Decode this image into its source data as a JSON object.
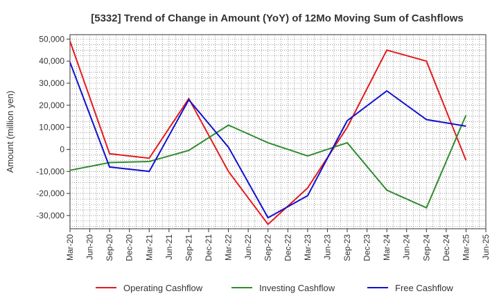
{
  "chart_data": {
    "type": "line",
    "title": "[5332]  Trend of Change in Amount (YoY) of 12Mo Moving Sum of Cashflows",
    "xlabel": "",
    "ylabel": "Amount (million yen)",
    "ylim": [
      -36000,
      52000
    ],
    "yticks": [
      50000,
      40000,
      30000,
      20000,
      10000,
      0,
      -10000,
      -20000,
      -30000
    ],
    "ytick_labels": [
      "50,000",
      "40,000",
      "30,000",
      "20,000",
      "10,000",
      "0",
      "-10,000",
      "-20,000",
      "-30,000"
    ],
    "x_tick_labels": [
      "Mar-20",
      "Jun-20",
      "Sep-20",
      "Dec-20",
      "Mar-21",
      "Jun-21",
      "Sep-21",
      "Dec-21",
      "Mar-22",
      "Jun-22",
      "Sep-22",
      "Dec-22",
      "Mar-23",
      "Jun-23",
      "Sep-23",
      "Dec-23",
      "Mar-24",
      "Jun-24",
      "Sep-24",
      "Dec-24",
      "Mar-25",
      "Jun-25"
    ],
    "x_points": [
      "Mar-20",
      "Sep-20",
      "Mar-21",
      "Sep-21",
      "Mar-22",
      "Sep-22",
      "Mar-23",
      "Sep-23",
      "Mar-24",
      "Sep-24",
      "Mar-25"
    ],
    "grid": true,
    "legend_position": "bottom",
    "series": [
      {
        "name": "Operating Cashflow",
        "color": "#e31a1c",
        "values": [
          49000,
          -2000,
          -4000,
          23000,
          -10000,
          -34000,
          -17500,
          10000,
          45000,
          40000,
          -5000
        ]
      },
      {
        "name": "Investing Cashflow",
        "color": "#2e8b2e",
        "values": [
          -9500,
          -6000,
          -5500,
          -500,
          11000,
          3000,
          -3000,
          3000,
          -18500,
          -26500,
          15500
        ]
      },
      {
        "name": "Free Cashflow",
        "color": "#1010d0",
        "values": [
          39500,
          -8000,
          -10000,
          22500,
          1000,
          -31000,
          -21000,
          13000,
          26500,
          13500,
          10500
        ]
      }
    ]
  }
}
